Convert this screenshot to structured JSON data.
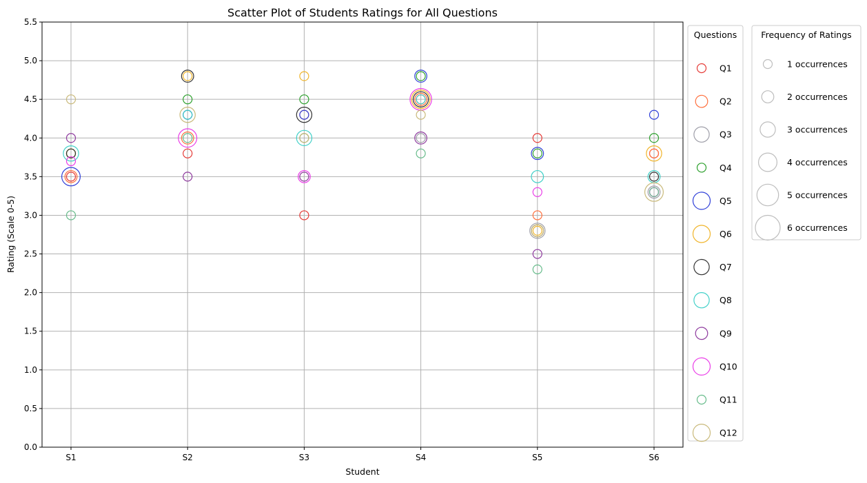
{
  "chart_data": {
    "type": "scatter",
    "title": "Scatter Plot of Students Ratings for All Questions",
    "xlabel": "Student",
    "ylabel": "Rating (Scale 0-5)",
    "categories": [
      "S1",
      "S2",
      "S3",
      "S4",
      "S5",
      "S6"
    ],
    "ylim": [
      0,
      5.5
    ],
    "yticks": [
      "0.0",
      "0.5",
      "1.0",
      "1.5",
      "2.0",
      "2.5",
      "3.0",
      "3.5",
      "4.0",
      "4.5",
      "5.0",
      "5.5"
    ],
    "grid": true,
    "legend_questions": {
      "title": "Questions",
      "placement": "outside-right"
    },
    "legend_frequency": {
      "title": "Frequency of Ratings",
      "placement": "outside-right",
      "entries": [
        {
          "label": "1 occurrences",
          "count": 1
        },
        {
          "label": "2 occurrences",
          "count": 2
        },
        {
          "label": "3 occurrences",
          "count": 3
        },
        {
          "label": "4 occurrences",
          "count": 4
        },
        {
          "label": "5 occurrences",
          "count": 5
        },
        {
          "label": "6 occurrences",
          "count": 6
        }
      ]
    },
    "series": [
      {
        "name": "Q1",
        "color": "#e53935",
        "values": [
          3.5,
          3.8,
          3.0,
          4.5,
          4.0,
          3.8
        ],
        "counts": [
          1,
          1,
          1,
          1,
          1,
          1
        ]
      },
      {
        "name": "Q2",
        "color": "#ff6f3c",
        "values": [
          3.5,
          4.0,
          4.3,
          4.5,
          3.0,
          3.8
        ],
        "counts": [
          2,
          2,
          1,
          2,
          1,
          1
        ]
      },
      {
        "name": "Q3",
        "color": "#9e9ea8",
        "values": [
          3.8,
          4.3,
          4.0,
          4.0,
          2.8,
          3.3
        ],
        "counts": [
          1,
          1,
          1,
          1,
          3,
          2
        ]
      },
      {
        "name": "Q4",
        "color": "#2ca02c",
        "values": [
          3.8,
          4.5,
          4.5,
          4.8,
          3.8,
          4.0
        ],
        "counts": [
          1,
          1,
          1,
          1,
          1,
          1
        ]
      },
      {
        "name": "Q5",
        "color": "#2f3fd8",
        "values": [
          3.5,
          4.3,
          4.3,
          4.8,
          3.8,
          4.3
        ],
        "counts": [
          4,
          1,
          1,
          2,
          2,
          1
        ]
      },
      {
        "name": "Q6",
        "color": "#f0b429",
        "values": [
          3.8,
          4.8,
          4.8,
          4.5,
          2.8,
          3.8
        ],
        "counts": [
          1,
          1,
          1,
          4,
          1,
          3
        ]
      },
      {
        "name": "Q7",
        "color": "#333333",
        "values": [
          3.8,
          4.8,
          4.3,
          4.5,
          2.8,
          3.5
        ],
        "counts": [
          1,
          2,
          3,
          3,
          2,
          1
        ]
      },
      {
        "name": "Q8",
        "color": "#40d0c8",
        "values": [
          3.8,
          4.3,
          4.0,
          4.5,
          3.5,
          3.5
        ],
        "counts": [
          3,
          1,
          3,
          1,
          2,
          2
        ]
      },
      {
        "name": "Q9",
        "color": "#8e3a9e",
        "values": [
          4.0,
          3.5,
          3.5,
          4.0,
          2.5,
          3.3
        ],
        "counts": [
          1,
          1,
          1,
          2,
          1,
          1
        ]
      },
      {
        "name": "Q10",
        "color": "#ea3ee8",
        "values": [
          3.7,
          4.0,
          3.5,
          4.5,
          3.3,
          3.3
        ],
        "counts": [
          1,
          4,
          2,
          5,
          1,
          1
        ]
      },
      {
        "name": "Q11",
        "color": "#66bb8a",
        "values": [
          3.0,
          4.0,
          4.0,
          3.8,
          2.3,
          3.3
        ],
        "counts": [
          1,
          1,
          1,
          1,
          1,
          1
        ]
      },
      {
        "name": "Q12",
        "color": "#c9b97a",
        "values": [
          4.5,
          4.3,
          4.0,
          4.3,
          2.8,
          3.3
        ],
        "counts": [
          1,
          3,
          1,
          1,
          2,
          4
        ]
      }
    ]
  }
}
